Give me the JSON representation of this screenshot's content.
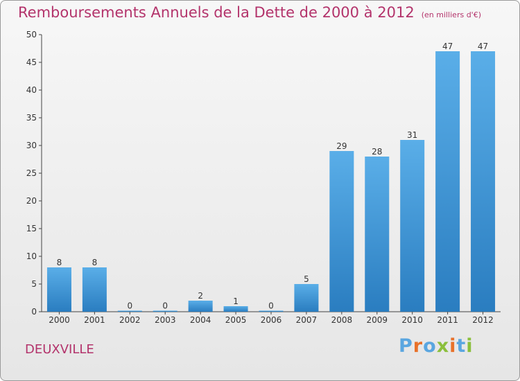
{
  "header": {
    "title": "Remboursements Annuels de la Dette de 2000 à 2012",
    "unit": "(en milliers d'€)"
  },
  "place_name": "DEUXVILLE",
  "logo": {
    "text": "Proxiti",
    "letter_colors": [
      "#5aa6e0",
      "#e8712a",
      "#5aa6e0",
      "#8bbf3c",
      "#e8712a",
      "#5aa6e0",
      "#8bbf3c"
    ]
  },
  "colors": {
    "bar_top": "#5aaee8",
    "bar_bottom": "#2a7dc0",
    "title": "#b3336b"
  },
  "chart_data": {
    "type": "bar",
    "title": "Remboursements Annuels de la Dette de 2000 à 2012",
    "subtitle": "(en milliers d'€)",
    "categories": [
      "2000",
      "2001",
      "2002",
      "2003",
      "2004",
      "2005",
      "2006",
      "2007",
      "2008",
      "2009",
      "2010",
      "2011",
      "2012"
    ],
    "values": [
      8,
      8,
      0,
      0,
      2,
      1,
      0,
      5,
      29,
      28,
      31,
      47,
      47
    ],
    "ylim": [
      0,
      50
    ],
    "yticks": [
      0,
      5,
      10,
      15,
      20,
      25,
      30,
      35,
      40,
      45,
      50
    ],
    "grid": false,
    "legend": "none"
  }
}
